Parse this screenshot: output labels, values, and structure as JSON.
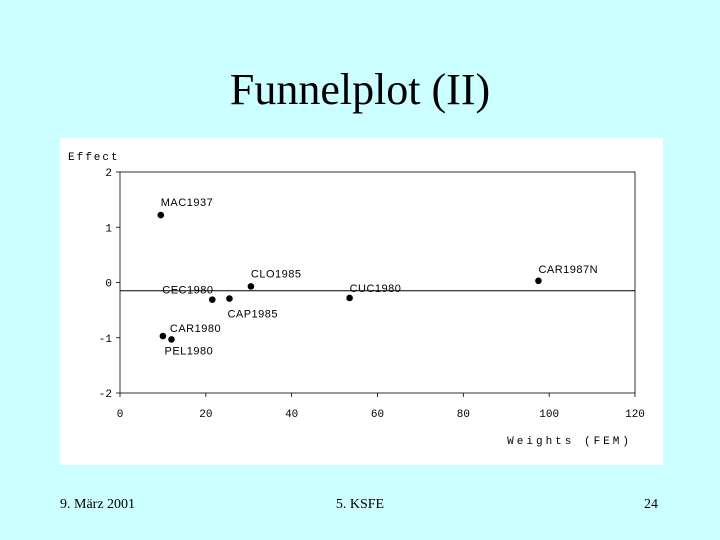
{
  "slide": {
    "title": "Funnelplot (II)",
    "footer_date": "9. März 2001",
    "footer_center": "5. KSFE",
    "footer_page": "24"
  },
  "colors": {
    "background": "#ccffff",
    "panel": "#ffffff",
    "ink": "#000000"
  },
  "chart_data": {
    "type": "scatter",
    "ylabel": "Effect",
    "xlabel": "Weights (FEM)",
    "xlim": [
      0,
      120
    ],
    "ylim": [
      -2,
      2
    ],
    "x_ticks": [
      "0",
      "20",
      "40",
      "60",
      "80",
      "100",
      "120"
    ],
    "y_ticks": [
      "2",
      "1",
      "0",
      "-1",
      "-2"
    ],
    "reference_line_y": -0.15,
    "grid": false,
    "points": [
      {
        "label": "MAC1937",
        "x": 9.5,
        "y": 1.22
      },
      {
        "label": "CEC1980",
        "x": 21.5,
        "y": -0.31
      },
      {
        "label": "CLO1985",
        "x": 30.5,
        "y": -0.07
      },
      {
        "label": "CAP1985",
        "x": 25.5,
        "y": -0.29
      },
      {
        "label": "CUC1980",
        "x": 53.5,
        "y": -0.28
      },
      {
        "label": "CAR1987N",
        "x": 97.5,
        "y": 0.03
      },
      {
        "label": "CAR1980",
        "x": 10.0,
        "y": -0.97
      },
      {
        "label": "PEL1980",
        "x": 12.0,
        "y": -1.03
      }
    ]
  }
}
